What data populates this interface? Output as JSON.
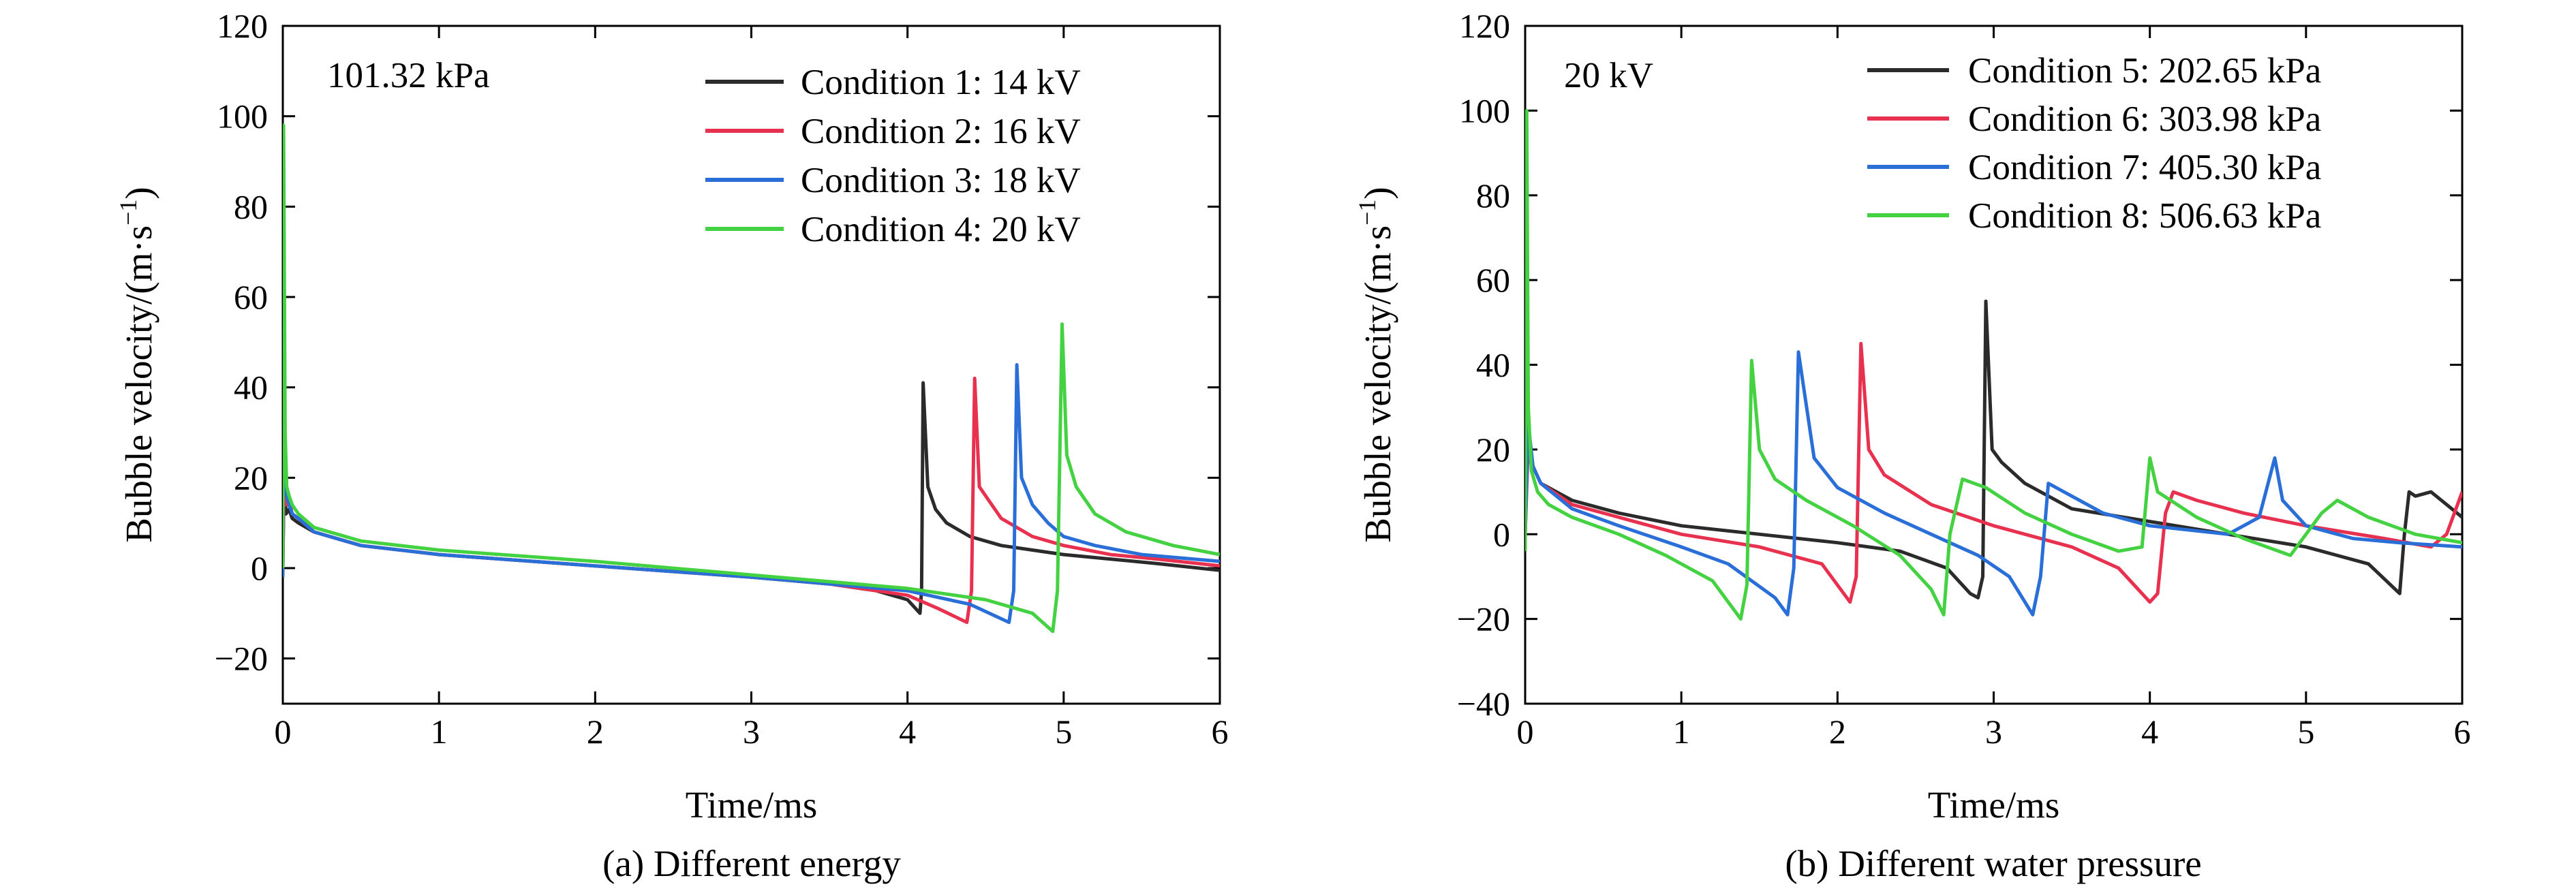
{
  "chart_data": [
    {
      "type": "line",
      "caption": "(a) Different energy",
      "annotation": "101.32 kPa",
      "xlabel": "Time/ms",
      "ylabel": "Bubble velocity/(m·s",
      "ylabel_sup": "−1",
      "ylabel_end": ")",
      "xlim": [
        0,
        6
      ],
      "ylim": [
        -30,
        120
      ],
      "xticks": [
        0,
        1,
        2,
        3,
        4,
        5,
        6
      ],
      "yticks": [
        -20,
        0,
        20,
        40,
        60,
        80,
        100,
        120
      ],
      "ytick_labels": [
        "−20",
        "0",
        "20",
        "40",
        "60",
        "80",
        "100",
        "120"
      ],
      "grid": false,
      "legend_position": "top-right",
      "series": [
        {
          "name": "Condition 1: 14 kV",
          "color": "#2b2b2b",
          "x": [
            0,
            0.01,
            0.02,
            0.04,
            0.06,
            0.1,
            0.2,
            0.5,
            1,
            2,
            3,
            3.5,
            3.8,
            4.0,
            4.08,
            4.09,
            4.1,
            4.13,
            4.18,
            4.25,
            4.4,
            4.6,
            4.8,
            5.0,
            5.3,
            5.6,
            6
          ],
          "y": [
            0,
            25,
            12,
            13,
            11,
            10,
            8,
            5,
            3,
            0.5,
            -2,
            -3.5,
            -5,
            -7,
            -10,
            -5,
            41,
            18,
            13,
            10,
            7,
            5,
            4,
            3,
            2,
            1,
            -0.5
          ]
        },
        {
          "name": "Condition 2: 16 kV",
          "color": "#e8304f",
          "x": [
            0,
            0.01,
            0.02,
            0.04,
            0.06,
            0.1,
            0.2,
            0.5,
            1,
            2,
            3,
            3.5,
            4.0,
            4.2,
            4.38,
            4.41,
            4.43,
            4.46,
            4.52,
            4.6,
            4.8,
            5.0,
            5.3,
            5.6,
            6
          ],
          "y": [
            0,
            30,
            14,
            15,
            12,
            11,
            8,
            5,
            3,
            0.5,
            -2,
            -3.5,
            -6,
            -9,
            -12,
            -5,
            42,
            18,
            15,
            11,
            7,
            5,
            3,
            2,
            0.5
          ]
        },
        {
          "name": "Condition 3: 18 kV",
          "color": "#2a6ed8",
          "x": [
            0,
            0.005,
            0.015,
            0.025,
            0.04,
            0.06,
            0.1,
            0.2,
            0.5,
            1,
            2,
            3,
            3.5,
            4.0,
            4.4,
            4.65,
            4.68,
            4.7,
            4.73,
            4.8,
            4.9,
            5.0,
            5.2,
            5.5,
            6
          ],
          "y": [
            -2,
            45,
            20,
            16,
            14,
            12,
            11,
            8,
            5,
            3,
            0.5,
            -2,
            -3.5,
            -5,
            -8,
            -12,
            -5,
            45,
            20,
            14,
            10,
            7,
            5,
            3,
            1.5
          ]
        },
        {
          "name": "Condition 4: 20 kV",
          "color": "#44d142",
          "x": [
            0,
            0.005,
            0.015,
            0.025,
            0.04,
            0.06,
            0.1,
            0.2,
            0.5,
            1,
            2,
            3,
            3.5,
            4.0,
            4.5,
            4.8,
            4.93,
            4.96,
            4.99,
            5.02,
            5.08,
            5.2,
            5.4,
            5.7,
            6
          ],
          "y": [
            0,
            98,
            30,
            18,
            16,
            14,
            12,
            9,
            6,
            4,
            1.5,
            -1.5,
            -3,
            -4.5,
            -7,
            -10,
            -14,
            -5,
            54,
            25,
            18,
            12,
            8,
            5,
            3
          ]
        }
      ]
    },
    {
      "type": "line",
      "caption": "(b) Different water pressure",
      "annotation": "20 kV",
      "xlabel": "Time/ms",
      "ylabel": "Bubble velocity/(m·s",
      "ylabel_sup": "−1",
      "ylabel_end": ")",
      "xlim": [
        0,
        6
      ],
      "ylim": [
        -40,
        120
      ],
      "xticks": [
        0,
        1,
        2,
        3,
        4,
        5,
        6
      ],
      "yticks": [
        -40,
        -20,
        0,
        20,
        40,
        60,
        80,
        100,
        120
      ],
      "ytick_labels": [
        "−40",
        "−20",
        "0",
        "20",
        "40",
        "60",
        "80",
        "100",
        "120"
      ],
      "grid": false,
      "legend_position": "top-right",
      "series": [
        {
          "name": "Condition 5: 202.65 kPa",
          "color": "#2b2b2b",
          "x": [
            0,
            0.01,
            0.02,
            0.05,
            0.1,
            0.3,
            0.6,
            1,
            1.5,
            2,
            2.4,
            2.7,
            2.85,
            2.9,
            2.93,
            2.95,
            2.99,
            3.05,
            3.2,
            3.5,
            4.0,
            4.5,
            5.0,
            5.4,
            5.6,
            5.63,
            5.66,
            5.7,
            5.8,
            5.9,
            6
          ],
          "y": [
            0,
            30,
            18,
            16,
            12,
            8,
            5,
            2,
            0,
            -2,
            -4,
            -8,
            -14,
            -15,
            -10,
            55,
            20,
            17,
            12,
            6,
            3,
            0,
            -3,
            -7,
            -14,
            0,
            10,
            9,
            10,
            7,
            4
          ]
        },
        {
          "name": "Condition 6: 303.98 kPa",
          "color": "#e8304f",
          "x": [
            0,
            0.02,
            0.05,
            0.1,
            0.3,
            0.6,
            1,
            1.5,
            1.9,
            2.08,
            2.12,
            2.15,
            2.2,
            2.3,
            2.6,
            3.0,
            3.5,
            3.8,
            4.0,
            4.05,
            4.1,
            4.15,
            4.3,
            4.6,
            5.0,
            5.5,
            5.8,
            5.9,
            6
          ],
          "y": [
            0,
            22,
            16,
            12,
            7,
            4,
            0,
            -3,
            -7,
            -16,
            -10,
            45,
            20,
            14,
            7,
            2,
            -3,
            -8,
            -16,
            -14,
            5,
            10,
            8,
            5,
            2,
            -1,
            -3,
            0,
            10
          ]
        },
        {
          "name": "Condition 7: 405.30 kPa",
          "color": "#2a6ed8",
          "x": [
            0,
            0.02,
            0.05,
            0.1,
            0.3,
            0.6,
            1,
            1.3,
            1.6,
            1.68,
            1.72,
            1.75,
            1.85,
            2.0,
            2.3,
            2.6,
            2.9,
            3.1,
            3.25,
            3.3,
            3.35,
            3.5,
            3.7,
            4.0,
            4.5,
            4.7,
            4.8,
            4.85,
            5.0,
            5.3,
            5.6,
            6
          ],
          "y": [
            0,
            26,
            16,
            12,
            6,
            2,
            -3,
            -7,
            -15,
            -19,
            -8,
            43,
            18,
            11,
            5,
            0,
            -5,
            -10,
            -19,
            -10,
            12,
            9,
            5,
            2,
            0,
            4,
            18,
            8,
            2,
            -1,
            -2,
            -3
          ]
        },
        {
          "name": "Condition 8: 506.63 kPa",
          "color": "#44d142",
          "x": [
            0,
            0.01,
            0.02,
            0.04,
            0.08,
            0.15,
            0.3,
            0.6,
            0.9,
            1.2,
            1.38,
            1.42,
            1.45,
            1.5,
            1.6,
            1.8,
            2.1,
            2.4,
            2.6,
            2.68,
            2.72,
            2.8,
            2.95,
            3.2,
            3.5,
            3.8,
            3.95,
            4.0,
            4.05,
            4.3,
            4.6,
            4.9,
            5.0,
            5.1,
            5.2,
            5.4,
            5.7,
            6
          ],
          "y": [
            -4,
            100,
            30,
            15,
            10,
            7,
            4,
            0,
            -5,
            -11,
            -20,
            -12,
            41,
            20,
            13,
            8,
            2,
            -5,
            -13,
            -19,
            0,
            13,
            11,
            5,
            0,
            -4,
            -3,
            18,
            10,
            4,
            -1,
            -5,
            0,
            5,
            8,
            4,
            0,
            -2
          ]
        }
      ]
    }
  ]
}
